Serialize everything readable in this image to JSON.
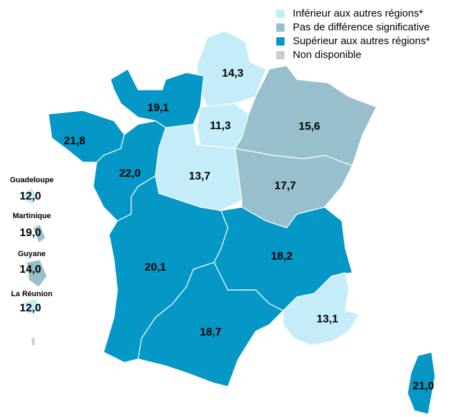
{
  "chart_data": {
    "type": "map",
    "legend": [
      {
        "name": "Inférieur aux autres régions*",
        "color": "#c5ecf9"
      },
      {
        "name": "Pas de différence significative",
        "color": "#98bfcc"
      },
      {
        "name": "Supérieur aux autres régions*",
        "color": "#0598c6"
      },
      {
        "name": "Non disponible",
        "color": "#cccccc"
      }
    ],
    "categories": [
      null,
      null,
      null,
      null,
      null,
      null,
      null,
      null,
      null,
      null,
      null,
      null,
      null,
      "Guadeloupe",
      "Martinique",
      "Guyane",
      "La Réunion"
    ],
    "values": [
      14.3,
      19.1,
      11.3,
      15.6,
      21.8,
      22.0,
      13.7,
      17.7,
      20.1,
      18.2,
      18.7,
      13.1,
      21.0,
      12.0,
      19.0,
      14.0,
      12.0
    ],
    "value_labels": [
      "14,3",
      "19,1",
      "11,3",
      "15,6",
      "21,8",
      "22,0",
      "13,7",
      "17,7",
      "20,1",
      "18,2",
      "18,7",
      "13,1",
      "21,0",
      "12,0",
      "19,0",
      "14,0",
      "12,0"
    ],
    "classes": [
      0,
      2,
      0,
      1,
      2,
      2,
      0,
      1,
      2,
      2,
      2,
      0,
      2,
      0,
      1,
      1,
      0
    ]
  }
}
